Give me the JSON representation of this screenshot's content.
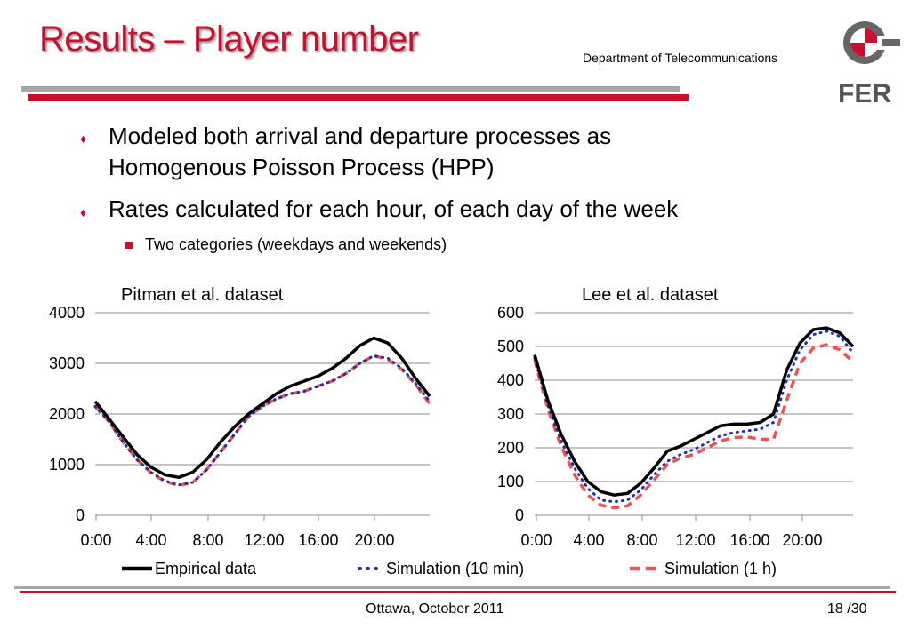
{
  "slide": {
    "title": "Results – Player number",
    "department": "Department of Telecommunications",
    "logo_text": "FER",
    "bullets": [
      {
        "line1": "Modeled both arrival and departure processes as",
        "line2": "Homogenous Poisson Process (HPP)"
      },
      {
        "line1": "Rates calculated for each hour, of each day of the week"
      }
    ],
    "sub_bullet": "Two categories (weekdays and weekends)",
    "footer": {
      "location_date": "Ottawa, October 2011",
      "page": "18 /30"
    },
    "colors": {
      "accent": "#c8102e",
      "empirical": "#000000",
      "sim10": "#1f2fa8",
      "sim1h": "#ef5350"
    }
  },
  "chart_data": [
    {
      "type": "line",
      "title": "Pitman  et al. dataset",
      "ylim": [
        0,
        4000
      ],
      "yticks": [
        "0",
        "1000",
        "2000",
        "3000",
        "4000"
      ],
      "xlim": [
        0,
        24
      ],
      "xticks": [
        "0:00",
        "4:00",
        "8:00",
        "12:00",
        "16:00",
        "20:00"
      ],
      "x": [
        0,
        1,
        2,
        3,
        4,
        5,
        6,
        7,
        8,
        9,
        10,
        11,
        12,
        13,
        14,
        15,
        16,
        17,
        18,
        19,
        20,
        21,
        22,
        23,
        24
      ],
      "series": [
        {
          "name": "Empirical data",
          "values": [
            2250,
            1900,
            1550,
            1200,
            950,
            800,
            750,
            850,
            1100,
            1450,
            1750,
            2000,
            2200,
            2400,
            2550,
            2650,
            2750,
            2900,
            3100,
            3350,
            3500,
            3400,
            3100,
            2700,
            2350
          ]
        },
        {
          "name": "Simulation (10 min)",
          "values": [
            2150,
            1850,
            1450,
            1100,
            850,
            680,
            600,
            650,
            900,
            1250,
            1600,
            1950,
            2150,
            2300,
            2400,
            2450,
            2550,
            2650,
            2800,
            3000,
            3150,
            3100,
            2900,
            2600,
            2250
          ]
        },
        {
          "name": "Simulation (1 h)",
          "values": [
            2150,
            1850,
            1450,
            1100,
            840,
            670,
            590,
            650,
            900,
            1250,
            1600,
            1950,
            2150,
            2300,
            2400,
            2450,
            2550,
            2650,
            2800,
            3000,
            3150,
            3080,
            2880,
            2580,
            2200
          ]
        }
      ]
    },
    {
      "type": "line",
      "title": "Lee et al. dataset",
      "ylim": [
        0,
        600
      ],
      "yticks": [
        "0",
        "100",
        "200",
        "300",
        "400",
        "500",
        "600"
      ],
      "xlim": [
        0,
        24
      ],
      "xticks": [
        "0:00",
        "4:00",
        "8:00",
        "12:00",
        "16:00",
        "20:00"
      ],
      "x": [
        0,
        1,
        2,
        3,
        4,
        5,
        6,
        7,
        8,
        9,
        10,
        11,
        12,
        13,
        14,
        15,
        16,
        17,
        18,
        19,
        20,
        21,
        22,
        23,
        24
      ],
      "series": [
        {
          "name": "Empirical data",
          "values": [
            475,
            340,
            240,
            160,
            100,
            70,
            60,
            65,
            95,
            140,
            190,
            205,
            225,
            245,
            265,
            270,
            270,
            275,
            300,
            430,
            510,
            550,
            555,
            540,
            500
          ]
        },
        {
          "name": "Simulation (10 min)",
          "values": [
            465,
            325,
            220,
            140,
            80,
            45,
            40,
            45,
            75,
            120,
            160,
            180,
            195,
            215,
            235,
            245,
            250,
            255,
            275,
            400,
            490,
            535,
            545,
            530,
            480
          ]
        },
        {
          "name": "Simulation (1 h)",
          "values": [
            460,
            315,
            205,
            120,
            60,
            30,
            22,
            28,
            60,
            105,
            150,
            170,
            180,
            200,
            220,
            230,
            232,
            225,
            225,
            340,
            450,
            495,
            505,
            490,
            455
          ]
        }
      ]
    }
  ],
  "legend": [
    "Empirical data",
    "Simulation (10 min)",
    "Simulation (1 h)"
  ]
}
